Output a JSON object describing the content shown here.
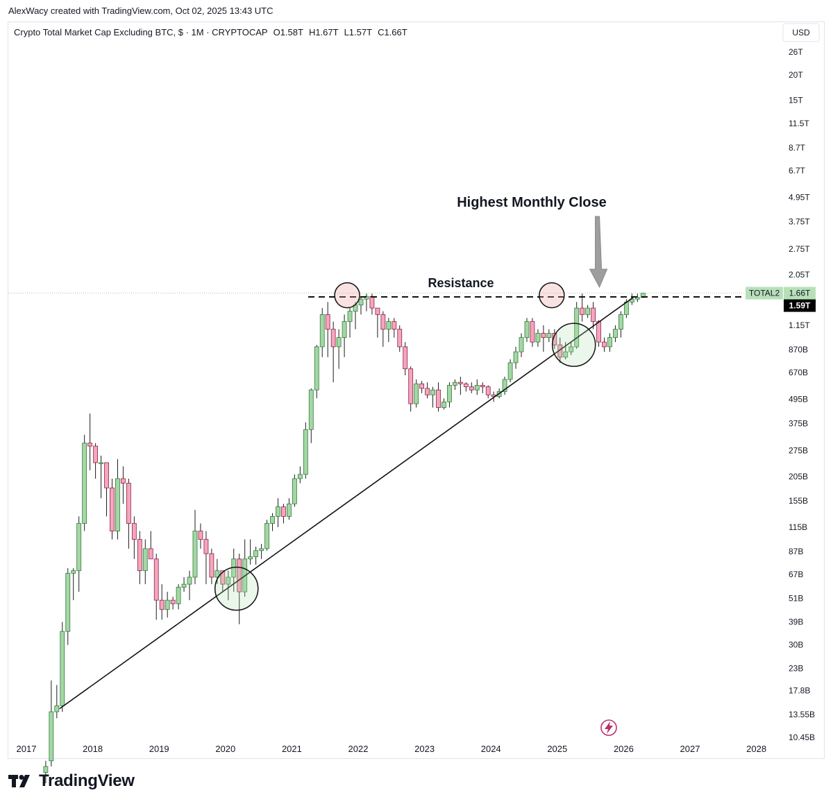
{
  "header": {
    "attribution": "AlexWacy created with TradingView.com, Oct 02, 2025 13:43 UTC",
    "symbol_line": "Crypto Total Market Cap Excluding BTC, $ · 1M · CRYPTOCAP",
    "ohlc": {
      "o": "O1.58T",
      "h": "H1.67T",
      "l": "L1.57T",
      "c": "C1.66T"
    }
  },
  "currency": "USD",
  "footer": {
    "brand": "TradingView"
  },
  "colors": {
    "up": "#a5d6a7",
    "down": "#f4a6bd",
    "up_edge": "#2e7d32",
    "down_edge": "#8e2044",
    "wick": "#1b1b1b",
    "price_tag": "#b7e0b9",
    "last_tag": "#000000"
  },
  "chart_data": {
    "type": "candlestick",
    "title": "Crypto Total Market Cap Excluding BTC",
    "y_scale": "log",
    "y_unit": "USD",
    "y_ticks": [
      "26T",
      "20T",
      "15T",
      "11.5T",
      "8.7T",
      "6.7T",
      "4.95T",
      "3.75T",
      "2.75T",
      "2.05T",
      "1.15T",
      "870B",
      "670B",
      "495B",
      "375B",
      "275B",
      "205B",
      "155B",
      "115B",
      "87B",
      "67B",
      "51B",
      "39B",
      "30B",
      "23B",
      "17.8B",
      "13.55B",
      "10.45B"
    ],
    "x_ticks": [
      "2017",
      "2018",
      "2019",
      "2020",
      "2021",
      "2022",
      "2023",
      "2024",
      "2025",
      "2026",
      "2027",
      "2028"
    ],
    "series_tag": "TOTAL2",
    "last_price_label": "1.66T",
    "last_close_label": "1.59T",
    "annotations": {
      "resistance": "Resistance",
      "highest_close": "Highest Monthly Close"
    },
    "resistance_level_B": 1590,
    "trendline_B": [
      {
        "t": "2017-07",
        "v": 14.5
      },
      {
        "t": "2026-03",
        "v": 1600
      }
    ],
    "circles": [
      {
        "t": "2020-03",
        "v": 57,
        "tone": "support"
      },
      {
        "t": "2025-04",
        "v": 920,
        "tone": "support"
      },
      {
        "t": "2021-11",
        "v": 1620,
        "tone": "resistance"
      },
      {
        "t": "2024-12",
        "v": 1620,
        "tone": "resistance"
      }
    ],
    "candles_start": "2017-04",
    "candles_B": [
      [
        7,
        7.5,
        6.2,
        8
      ],
      [
        8,
        14,
        7.5,
        20
      ],
      [
        14,
        15,
        13,
        19
      ],
      [
        15,
        35,
        14,
        39
      ],
      [
        35,
        68,
        30,
        72
      ],
      [
        68,
        70,
        50,
        72
      ],
      [
        70,
        120,
        55,
        130
      ],
      [
        120,
        300,
        110,
        330
      ],
      [
        300,
        290,
        220,
        420
      ],
      [
        290,
        240,
        200,
        300
      ],
      [
        240,
        240,
        160,
        260
      ],
      [
        240,
        180,
        130,
        240
      ],
      [
        180,
        110,
        100,
        200
      ],
      [
        110,
        200,
        100,
        250
      ],
      [
        200,
        190,
        150,
        230
      ],
      [
        190,
        120,
        90,
        200
      ],
      [
        120,
        100,
        80,
        130
      ],
      [
        100,
        70,
        60,
        110
      ],
      [
        70,
        90,
        60,
        100
      ],
      [
        90,
        80,
        80,
        110
      ],
      [
        80,
        50,
        40,
        85
      ],
      [
        50,
        45,
        40,
        60
      ],
      [
        45,
        50,
        41,
        55
      ],
      [
        50,
        48,
        45,
        52
      ],
      [
        48,
        58,
        45,
        60
      ],
      [
        58,
        60,
        55,
        65
      ],
      [
        60,
        65,
        50,
        70
      ],
      [
        65,
        110,
        60,
        140
      ],
      [
        110,
        100,
        90,
        120
      ],
      [
        100,
        85,
        60,
        110
      ],
      [
        85,
        65,
        60,
        90
      ],
      [
        65,
        70,
        60,
        80
      ],
      [
        70,
        60,
        55,
        70
      ],
      [
        60,
        65,
        50,
        70
      ],
      [
        65,
        80,
        55,
        90
      ],
      [
        80,
        55,
        38,
        85
      ],
      [
        55,
        80,
        52,
        100
      ],
      [
        80,
        82,
        75,
        100
      ],
      [
        82,
        88,
        75,
        92
      ],
      [
        88,
        90,
        80,
        95
      ],
      [
        90,
        120,
        88,
        125
      ],
      [
        120,
        130,
        110,
        135
      ],
      [
        130,
        145,
        115,
        160
      ],
      [
        145,
        130,
        120,
        150
      ],
      [
        130,
        150,
        125,
        160
      ],
      [
        150,
        200,
        145,
        210
      ],
      [
        200,
        210,
        190,
        230
      ],
      [
        210,
        350,
        200,
        380
      ],
      [
        350,
        550,
        300,
        560
      ],
      [
        550,
        900,
        500,
        920
      ],
      [
        900,
        1300,
        800,
        1400
      ],
      [
        1300,
        1100,
        800,
        1500
      ],
      [
        1100,
        900,
        600,
        1200
      ],
      [
        900,
        1000,
        700,
        1100
      ],
      [
        1000,
        1200,
        800,
        1300
      ],
      [
        1200,
        1350,
        1000,
        1400
      ],
      [
        1350,
        1450,
        1100,
        1500
      ],
      [
        1450,
        1550,
        1300,
        1600
      ],
      [
        1550,
        1600,
        1350,
        1650
      ],
      [
        1600,
        1400,
        1300,
        1650
      ],
      [
        1400,
        1300,
        1000,
        1400
      ],
      [
        1300,
        1100,
        900,
        1350
      ],
      [
        1100,
        1200,
        950,
        1250
      ],
      [
        1200,
        1100,
        1000,
        1250
      ],
      [
        1100,
        900,
        850,
        1150
      ],
      [
        900,
        700,
        650,
        950
      ],
      [
        700,
        470,
        430,
        720
      ],
      [
        470,
        590,
        450,
        620
      ],
      [
        590,
        560,
        530,
        610
      ],
      [
        560,
        520,
        500,
        600
      ],
      [
        520,
        550,
        450,
        570
      ],
      [
        550,
        450,
        430,
        600
      ],
      [
        450,
        480,
        440,
        500
      ],
      [
        480,
        580,
        450,
        600
      ],
      [
        580,
        600,
        550,
        620
      ],
      [
        600,
        590,
        520,
        640
      ],
      [
        590,
        570,
        540,
        600
      ],
      [
        570,
        550,
        530,
        600
      ],
      [
        550,
        580,
        520,
        620
      ],
      [
        580,
        570,
        530,
        600
      ],
      [
        570,
        520,
        500,
        580
      ],
      [
        520,
        510,
        480,
        540
      ],
      [
        510,
        540,
        500,
        560
      ],
      [
        540,
        620,
        520,
        640
      ],
      [
        620,
        750,
        600,
        780
      ],
      [
        750,
        850,
        700,
        900
      ],
      [
        850,
        1000,
        800,
        1050
      ],
      [
        1000,
        1200,
        950,
        1250
      ],
      [
        1200,
        950,
        900,
        1250
      ],
      [
        950,
        1050,
        900,
        1100
      ],
      [
        1050,
        1000,
        850,
        1150
      ],
      [
        1000,
        1050,
        950,
        1100
      ],
      [
        1050,
        920,
        880,
        1100
      ],
      [
        920,
        800,
        750,
        1000
      ],
      [
        800,
        850,
        780,
        950
      ],
      [
        850,
        900,
        820,
        950
      ],
      [
        900,
        1400,
        880,
        1500
      ],
      [
        1400,
        1300,
        1200,
        1650
      ],
      [
        1300,
        1400,
        1250,
        1450
      ],
      [
        1400,
        1200,
        1100,
        1500
      ],
      [
        1200,
        950,
        900,
        1220
      ],
      [
        950,
        900,
        850,
        1000
      ],
      [
        900,
        1000,
        850,
        1050
      ],
      [
        1000,
        1100,
        950,
        1150
      ],
      [
        1100,
        1300,
        1000,
        1350
      ],
      [
        1300,
        1500,
        1250,
        1550
      ],
      [
        1500,
        1550,
        1450,
        1650
      ],
      [
        1550,
        1580,
        1500,
        1650
      ],
      [
        1580,
        1660,
        1570,
        1670
      ]
    ]
  }
}
